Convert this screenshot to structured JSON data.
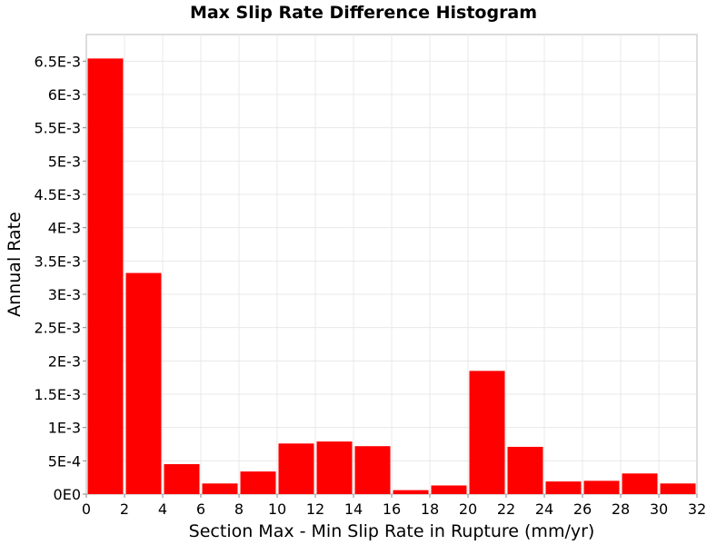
{
  "chart_data": {
    "type": "bar",
    "title": "Max Slip Rate Difference Histogram",
    "xlabel": "Section Max - Min Slip Rate in Rupture (mm/yr)",
    "ylabel": "Annual Rate",
    "xlim": [
      0,
      32
    ],
    "ylim": [
      0,
      0.0069
    ],
    "bin_width": 2,
    "bins": [
      {
        "x_start": 0,
        "x_end": 2,
        "value": 0.00654
      },
      {
        "x_start": 2,
        "x_end": 4,
        "value": 0.00332
      },
      {
        "x_start": 4,
        "x_end": 6,
        "value": 0.00045
      },
      {
        "x_start": 6,
        "x_end": 8,
        "value": 0.00016
      },
      {
        "x_start": 8,
        "x_end": 10,
        "value": 0.00034
      },
      {
        "x_start": 10,
        "x_end": 12,
        "value": 0.00076
      },
      {
        "x_start": 12,
        "x_end": 14,
        "value": 0.00079
      },
      {
        "x_start": 14,
        "x_end": 16,
        "value": 0.00072
      },
      {
        "x_start": 16,
        "x_end": 18,
        "value": 6e-05
      },
      {
        "x_start": 18,
        "x_end": 20,
        "value": 0.00013
      },
      {
        "x_start": 20,
        "x_end": 22,
        "value": 0.00185
      },
      {
        "x_start": 22,
        "x_end": 24,
        "value": 0.00071
      },
      {
        "x_start": 24,
        "x_end": 26,
        "value": 0.00019
      },
      {
        "x_start": 26,
        "x_end": 28,
        "value": 0.0002
      },
      {
        "x_start": 28,
        "x_end": 30,
        "value": 0.00031
      },
      {
        "x_start": 30,
        "x_end": 32,
        "value": 0.00016
      }
    ],
    "x_ticks": [
      0,
      2,
      4,
      6,
      8,
      10,
      12,
      14,
      16,
      18,
      20,
      22,
      24,
      26,
      28,
      30,
      32
    ],
    "y_ticks": [
      {
        "value": 0,
        "label": "0E0"
      },
      {
        "value": 0.0005,
        "label": "5E-4"
      },
      {
        "value": 0.001,
        "label": "1E-3"
      },
      {
        "value": 0.0015,
        "label": "1.5E-3"
      },
      {
        "value": 0.002,
        "label": "2E-3"
      },
      {
        "value": 0.0025,
        "label": "2.5E-3"
      },
      {
        "value": 0.003,
        "label": "3E-3"
      },
      {
        "value": 0.0035,
        "label": "3.5E-3"
      },
      {
        "value": 0.004,
        "label": "4E-3"
      },
      {
        "value": 0.0045,
        "label": "4.5E-3"
      },
      {
        "value": 0.005,
        "label": "5E-3"
      },
      {
        "value": 0.0055,
        "label": "5.5E-3"
      },
      {
        "value": 0.006,
        "label": "6E-3"
      },
      {
        "value": 0.0065,
        "label": "6.5E-3"
      }
    ],
    "grid": true,
    "bar_color": "#ff0000",
    "grid_color": "#e8e8e8",
    "legend": "none"
  }
}
